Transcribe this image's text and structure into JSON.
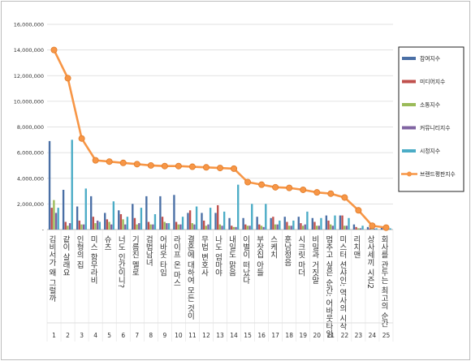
{
  "chart_data": {
    "type": "bar",
    "categories": [
      "김비서가 왜 그럴까",
      "같이 살래요",
      "인형의 집",
      "미스 함무라비",
      "슈츠",
      "너도 인간이니?",
      "기름진 멜로",
      "검법남녀",
      "어바웃 타임",
      "라이프 온 마스",
      "결혼에 대하여 모든 것이",
      "무법 변호사",
      "나도 엄마야",
      "내일도 맑음",
      "이별이 떠났다",
      "부잣집 아들",
      "스케치",
      "훈남정음",
      "시크릿 마더",
      "비밀과 거짓말",
      "멈추고 싶은 순간: 어바웃타임",
      "미스터 션샤인: 역사의 시작",
      "리치맨",
      "상사세끼 시즌2",
      "회사를 관두는 최고의 순간"
    ],
    "x_numbers": [
      "1",
      "2",
      "3",
      "4",
      "5",
      "6",
      "7",
      "8",
      "9",
      "10",
      "11",
      "12",
      "13",
      "14",
      "15",
      "16",
      "17",
      "18",
      "19",
      "20",
      "21",
      "22",
      "23",
      "24",
      "25"
    ],
    "ylim": [
      0,
      16000000
    ],
    "y_ticks": [
      "-",
      "2,000,000",
      "4,000,000",
      "6,000,000",
      "8,000,000",
      "10,000,000",
      "12,000,000",
      "14,000,000",
      "16,000,000"
    ],
    "grid": true,
    "legend_position": "right",
    "series": [
      {
        "name": "참여지수",
        "kind": "bar",
        "color": "#4a6fa5",
        "values": [
          6900000,
          3100000,
          1800000,
          2600000,
          1300000,
          1500000,
          2000000,
          2600000,
          2600000,
          2700000,
          1300000,
          1300000,
          1300000,
          900000,
          900000,
          1000000,
          900000,
          1000000,
          1000000,
          900000,
          1100000,
          1100000,
          400000,
          200000,
          150000
        ]
      },
      {
        "name": "미디어지수",
        "kind": "bar",
        "color": "#c0504d",
        "values": [
          1700000,
          600000,
          700000,
          1000000,
          800000,
          1200000,
          900000,
          600000,
          1000000,
          600000,
          1500000,
          700000,
          1900000,
          300000,
          400000,
          400000,
          1000000,
          600000,
          500000,
          600000,
          700000,
          1100000,
          200000,
          100000,
          80000
        ]
      },
      {
        "name": "소통지수",
        "kind": "bar",
        "color": "#9bbb59",
        "values": [
          2300000,
          300000,
          400000,
          500000,
          600000,
          800000,
          400000,
          400000,
          600000,
          400000,
          500000,
          300000,
          400000,
          200000,
          300000,
          300000,
          400000,
          300000,
          300000,
          300000,
          400000,
          300000,
          100000,
          80000,
          60000
        ]
      },
      {
        "name": "커뮤니티지수",
        "kind": "bar",
        "color": "#8064a2",
        "values": [
          1300000,
          500000,
          400000,
          700000,
          400000,
          400000,
          500000,
          400000,
          500000,
          400000,
          400000,
          400000,
          300000,
          200000,
          300000,
          200000,
          400000,
          300000,
          400000,
          300000,
          300000,
          300000,
          100000,
          80000,
          60000
        ]
      },
      {
        "name": "시청지수",
        "kind": "bar",
        "color": "#4bacc6",
        "values": [
          1700000,
          7000000,
          3200000,
          600000,
          2200000,
          1000000,
          1700000,
          1200000,
          500000,
          1000000,
          1800000,
          1700000,
          1400000,
          3500000,
          2000000,
          2000000,
          700000,
          700000,
          1400000,
          900000,
          1100000,
          900000,
          300000,
          100000,
          100000
        ]
      },
      {
        "name": "브랜드평판지수",
        "kind": "line",
        "color": "#f79646",
        "values": [
          14000000,
          11800000,
          7100000,
          5400000,
          5300000,
          5200000,
          5100000,
          5000000,
          4950000,
          4950000,
          4900000,
          4850000,
          4800000,
          4750000,
          3700000,
          3500000,
          3300000,
          3250000,
          3100000,
          2900000,
          2800000,
          2500000,
          1500000,
          300000,
          150000
        ]
      }
    ]
  }
}
